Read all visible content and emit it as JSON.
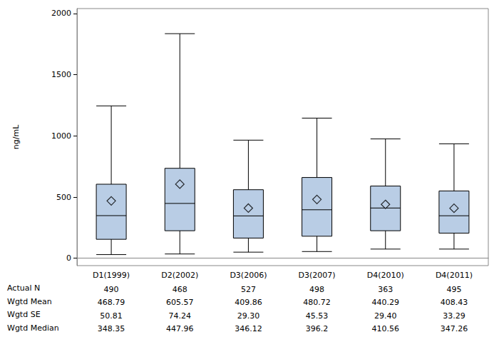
{
  "chart_data": {
    "type": "boxplot",
    "y_label": "ng/mL",
    "categories": [
      "D1(1999)",
      "D2(2002)",
      "D3(2006)",
      "D3(2007)",
      "D4(2010)",
      "D4(2011)"
    ],
    "boxes": [
      {
        "low": 30,
        "q1": 155,
        "median": 348.35,
        "q3": 605,
        "high": 1245
      },
      {
        "low": 35,
        "q1": 225,
        "median": 447.96,
        "q3": 735,
        "high": 1835
      },
      {
        "low": 50,
        "q1": 165,
        "median": 346.12,
        "q3": 560,
        "high": 965
      },
      {
        "low": 55,
        "q1": 180,
        "median": 396.2,
        "q3": 660,
        "high": 1145
      },
      {
        "low": 75,
        "q1": 225,
        "median": 410.56,
        "q3": 590,
        "high": 975
      },
      {
        "low": 75,
        "q1": 205,
        "median": 347.26,
        "q3": 550,
        "high": 935
      }
    ],
    "means": [
      468.79,
      605.57,
      409.86,
      480.72,
      440.29,
      408.43
    ],
    "marker": "diamond",
    "color": "#b9cde5",
    "ylim": [
      -60,
      2040
    ],
    "yticks": [
      0,
      500,
      1000,
      1500,
      2000
    ],
    "grid": false,
    "table": {
      "rows": [
        {
          "label": "Actual N",
          "values": [
            490,
            468,
            527,
            498,
            363,
            495
          ]
        },
        {
          "label": "Wgtd Mean",
          "values": [
            468.79,
            605.57,
            409.86,
            480.72,
            440.29,
            408.43
          ]
        },
        {
          "label": "Wgtd SE",
          "values": [
            50.81,
            74.24,
            29.3,
            45.53,
            29.4,
            33.29
          ],
          "value_labels": [
            "50.81",
            "74.24",
            "29.30",
            "45.53",
            "29.40",
            "33.29"
          ]
        },
        {
          "label": "Wgtd Median",
          "values": [
            348.35,
            447.96,
            346.12,
            396.2,
            410.56,
            347.26
          ]
        }
      ]
    }
  }
}
